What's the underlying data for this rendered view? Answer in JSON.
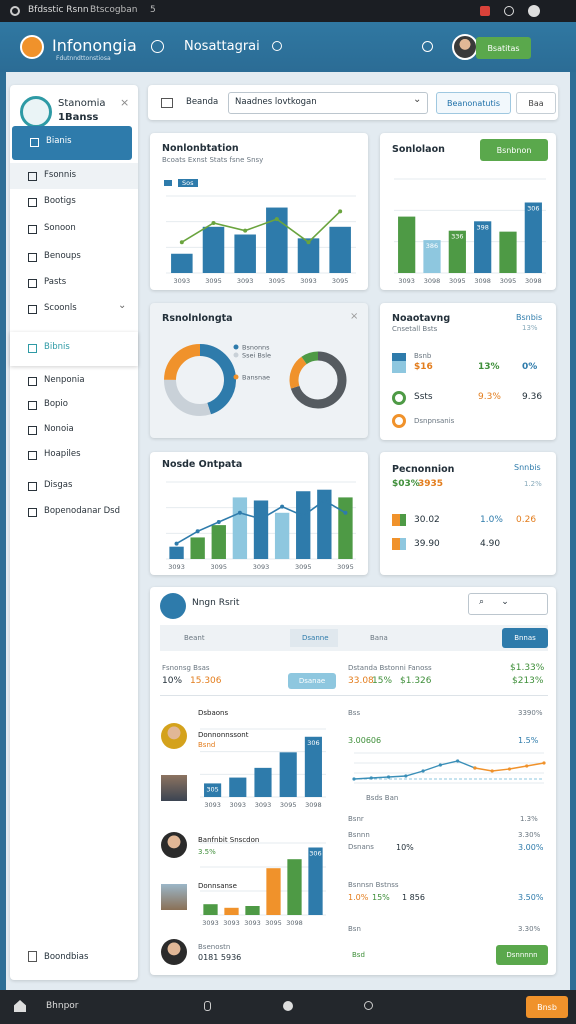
{
  "status_bar": {
    "title": "Bfdsstic Rsnn",
    "subtitle": "Btscogban",
    "count": "5"
  },
  "header": {
    "brand": "Infonongia",
    "tagline": "Fdutnndttonstiosa",
    "nav": "Nosattagrai",
    "button": "Bsatitas"
  },
  "sidebar": {
    "title": "Stanomia",
    "subtitle": "1Banss",
    "items": [
      "Bianis",
      "Fsonnis",
      "Bootigs",
      "Sonoon",
      "Benoups",
      "Pasts",
      "Scoonls",
      "Bibnis",
      "Nenponia",
      "Bopio",
      "Nonoia",
      "Hoapiles",
      "Disgas",
      "Bopenodanar Dsd"
    ],
    "footer": "Boondbias"
  },
  "toolbar": {
    "label": "Beanda",
    "select": "Naadnes lovtkogan",
    "button": "Beanonatutis",
    "search": "Baa"
  },
  "panels": [
    {
      "title": "Nonlonbtation",
      "subtitle": "Bcoats Exnst Stats fsne Snsy",
      "legend": "Sos",
      "chart": {
        "type": "bar",
        "categories": [
          "3093",
          "3095",
          "3093",
          "3095",
          "3093",
          "3095"
        ],
        "ylim": [
          0,
          20
        ],
        "values": [
          5,
          12,
          10,
          17,
          9,
          12
        ],
        "color": "#2e7bab",
        "line": {
          "color": "#6aa43e",
          "values": [
            8,
            13,
            11,
            14,
            8,
            16
          ]
        }
      }
    },
    {
      "title": "Sonlolaon",
      "button": "Bsnbnon",
      "chart": {
        "type": "bar",
        "categories": [
          "3093",
          "3098",
          "3095",
          "3098",
          "3095",
          "3098"
        ],
        "ylim": [
          0,
          100
        ],
        "values": [
          60,
          35,
          45,
          55,
          44,
          75
        ],
        "colors": [
          "#4e9a45",
          "#8ec7df",
          "#4e9a45",
          "#2e7bab",
          "#4e9a45",
          "#2e7bab"
        ],
        "annotations": [
          "386",
          "336",
          "398",
          "306"
        ]
      }
    },
    {
      "title": "Rsnolnlongta",
      "legend": [
        "Bsnonns",
        "Ssei Bsle",
        "Bansnae"
      ],
      "donuts": [
        {
          "values": [
            45,
            30,
            25
          ],
          "colors": [
            "#2e7bab",
            "#c9d1d8",
            "#f0922b"
          ]
        },
        {
          "values": [
            70,
            20,
            10
          ],
          "colors": [
            "#555b60",
            "#f0922b",
            "#4e9a45"
          ]
        }
      ]
    },
    {
      "title": "Noaotavng",
      "subtitle": "Cnsetall Bsts",
      "side": "Bsnbis",
      "side_value": "13%",
      "rows": [
        [
          "Bsnb",
          ""
        ],
        [
          "$16",
          "13%",
          "0%"
        ],
        [
          "Ssts",
          "9.3%",
          "9.36"
        ],
        [
          "Dsnpnsanis"
        ]
      ]
    },
    {
      "title": "Nosde Ontpata",
      "chart": {
        "type": "bar",
        "categories": [
          "3093",
          null,
          "3095",
          null,
          "3093",
          null,
          "3095",
          null,
          "3095"
        ],
        "ylim": [
          0,
          50
        ],
        "values": [
          8,
          14,
          22,
          40,
          38,
          30,
          44,
          45,
          40
        ],
        "colors": [
          "#2e7bab",
          "#4e9a45",
          "#4e9a45",
          "#8ec7df",
          "#2e7bab",
          "#8ec7df",
          "#2e7bab",
          "#2e7bab",
          "#4e9a45"
        ],
        "line": {
          "color": "#2e7bab",
          "values": [
            10,
            18,
            24,
            30,
            26,
            34,
            28,
            38,
            30
          ]
        }
      }
    },
    {
      "title": "Pecnonnion",
      "side": "Snnbis",
      "metric": "$03%",
      "metric_alt": "3935",
      "side_value": "1.2%",
      "rows": [
        [
          "30.02",
          "1.0%",
          "0.26"
        ],
        [
          "39.90",
          "4.90"
        ]
      ]
    }
  ],
  "report": {
    "title": "Nngn Rsrit",
    "tabs": [
      "Beant",
      "Dsanne",
      "Bana"
    ],
    "tab_button": "Bnnas",
    "metrics": {
      "label": "Fsnonsg Bsas",
      "a": "10%",
      "b": "15.306",
      "button": "Dsanae",
      "label2": "Dstanda Bstonni Fanoss",
      "c": "33.08",
      "d": "15%",
      "e": "$1.326",
      "f": "$1.33%",
      "g": "$213%"
    },
    "section_a": {
      "heading": "Dsbaons",
      "name": "Donnonnssont",
      "sub": "Bsnd",
      "right_label": "Bss",
      "right_value": "3390%",
      "r1": "3.00606",
      "r2": "1.5%",
      "axis_label": "Bsds Ban",
      "r3": "Bsnr",
      "r4": "1.3%",
      "chart": {
        "type": "bar",
        "categories": [
          "3093",
          "3093",
          "3093",
          "3095",
          "3098"
        ],
        "ylim": [
          0,
          70
        ],
        "values": [
          14,
          20,
          30,
          46,
          62
        ],
        "color": "#2e7bab",
        "annotations": [
          "305",
          "306"
        ]
      },
      "trend": {
        "type": "line",
        "ylim": [
          0,
          30
        ],
        "series": [
          {
            "color": "#3a8fb8",
            "values": [
              4,
              5,
              6,
              7,
              12,
              18,
              22,
              15,
              null,
              null,
              null,
              null
            ]
          },
          {
            "color": "#f0922b",
            "values": [
              null,
              null,
              null,
              null,
              null,
              null,
              null,
              15,
              12,
              14,
              17,
              20
            ]
          }
        ]
      }
    },
    "section_b": {
      "name": "Banfnbit Snscdon",
      "value": "3.5%",
      "name2": "Donnsanse",
      "right_label": "Bsnnn",
      "right_value": "3.30%",
      "r1": "Dsnans",
      "r2": "10%",
      "r3": "3.00%",
      "r4": "Bsnnsn Bstnss",
      "r5": "1.0%",
      "r6": "15%",
      "r7": "1 856",
      "r8": "3.50%",
      "r9": "Bsn",
      "r10": "3.30%",
      "chart": {
        "type": "bar",
        "categories": [
          "3093",
          "3093",
          "3093",
          "3095",
          "3098",
          null
        ],
        "ylim": [
          0,
          80
        ],
        "values": [
          12,
          8,
          10,
          52,
          62,
          75
        ],
        "colors": [
          "#4e9a45",
          "#f0922b",
          "#4e9a45",
          "#f0922b",
          "#4e9a45",
          "#2e7bab"
        ],
        "annotations": [
          "306"
        ]
      }
    },
    "footer_row": {
      "name": "Bsenostn",
      "value": "0181 5936",
      "label": "Bsd",
      "button": "Dsnnnnn"
    }
  },
  "bottom_nav": {
    "label": "Bhnpor",
    "button": "Bnsb"
  }
}
